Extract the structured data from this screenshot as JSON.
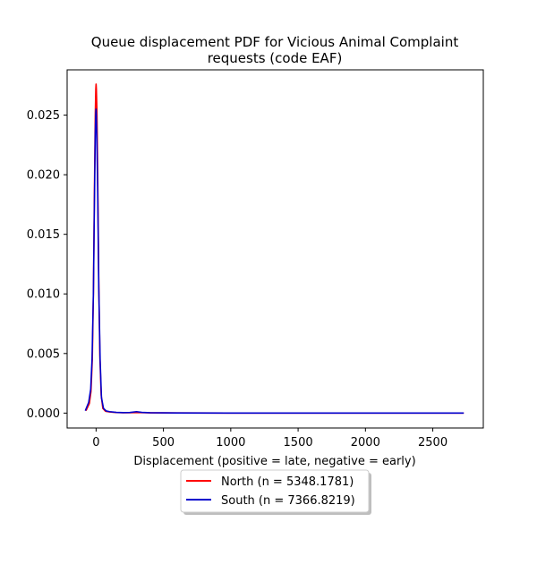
{
  "chart_data": {
    "type": "line",
    "title_lines": [
      "Queue displacement PDF for Vicious Animal Complaint",
      "requests (code EAF)"
    ],
    "xlabel": "Displacement (positive = late, negative = early)",
    "ylabel": "",
    "xlim": [
      -215,
      2875
    ],
    "ylim": [
      -0.00125,
      0.0288
    ],
    "x_ticks": [
      0,
      500,
      1000,
      1500,
      2000,
      2500
    ],
    "x_tick_labels": [
      "0",
      "500",
      "1000",
      "1500",
      "2000",
      "2500"
    ],
    "y_ticks": [
      0.0,
      0.005,
      0.01,
      0.015,
      0.02,
      0.025
    ],
    "y_tick_labels": [
      "0.000",
      "0.005",
      "0.010",
      "0.015",
      "0.020",
      "0.025"
    ],
    "grid": false,
    "legend_placement": "below plot, centered",
    "series": [
      {
        "name": "North (n = 5348.1781)",
        "color": "#ff0000",
        "x": [
          -75,
          -50,
          -38,
          -28,
          -20,
          -12,
          -6,
          -2,
          0,
          2,
          6,
          12,
          20,
          28,
          38,
          50,
          70,
          100,
          150,
          200,
          250,
          300,
          400,
          600,
          1000,
          1500,
          2000,
          2500,
          2730
        ],
        "y": [
          0.0002,
          0.0008,
          0.0018,
          0.0045,
          0.01,
          0.019,
          0.025,
          0.0272,
          0.0276,
          0.0272,
          0.0255,
          0.02,
          0.011,
          0.0048,
          0.0015,
          0.0004,
          0.00015,
          0.0001,
          5e-05,
          3e-05,
          3e-05,
          5e-05,
          2e-05,
          1e-05,
          0.0,
          0.0,
          0.0,
          0.0,
          0.0
        ]
      },
      {
        "name": "South (n = 7366.8219)",
        "color": "#0000cd",
        "x": [
          -80,
          -55,
          -40,
          -30,
          -20,
          -12,
          -6,
          -2,
          0,
          2,
          6,
          12,
          20,
          30,
          40,
          55,
          75,
          100,
          150,
          200,
          250,
          300,
          340,
          400,
          600,
          1000,
          1500,
          2000,
          2500,
          2730
        ],
        "y": [
          0.0002,
          0.0009,
          0.002,
          0.0045,
          0.01,
          0.018,
          0.0235,
          0.0252,
          0.0255,
          0.025,
          0.023,
          0.0185,
          0.0105,
          0.0045,
          0.0013,
          0.0004,
          0.00018,
          0.00012,
          6e-05,
          4e-05,
          5e-05,
          0.00012,
          6e-05,
          3e-05,
          1e-05,
          0.0,
          0.0,
          0.0,
          0.0,
          0.0
        ]
      }
    ]
  }
}
